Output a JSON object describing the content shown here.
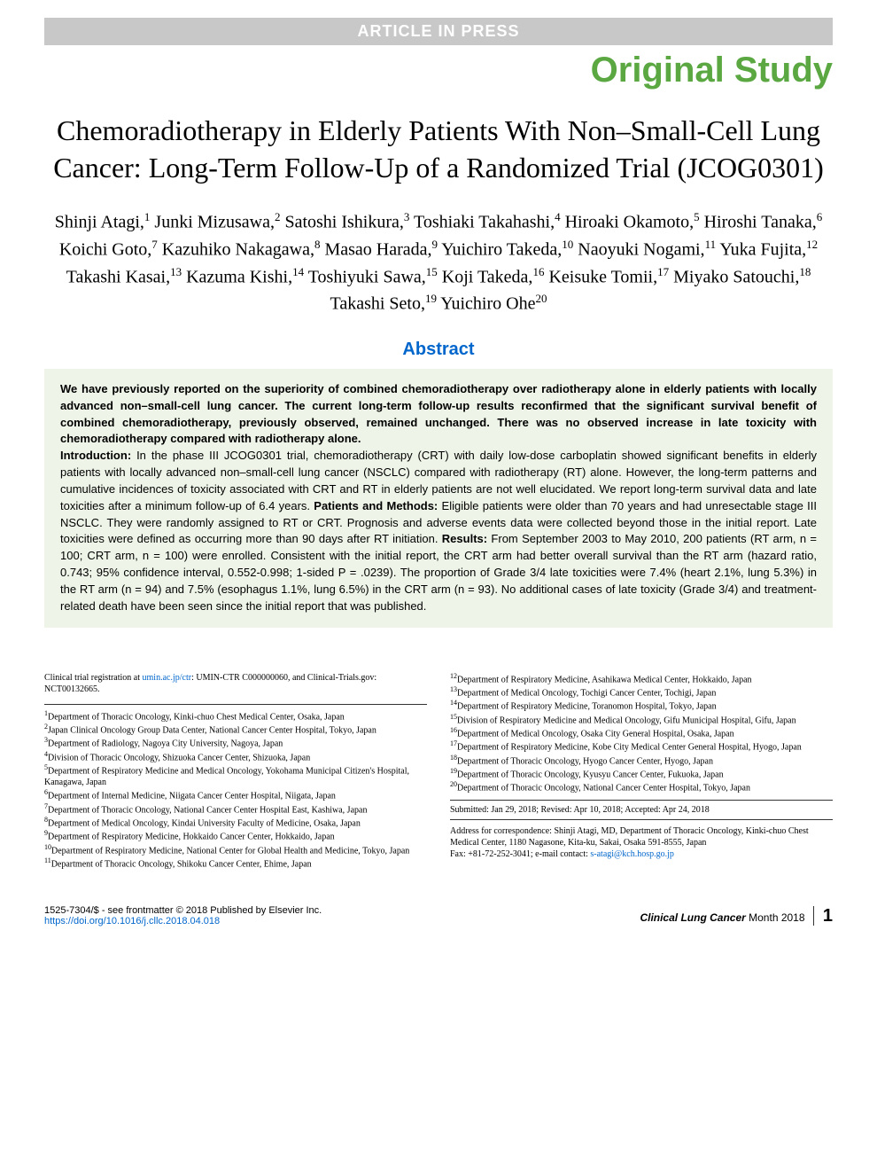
{
  "banner": {
    "in_press": "ARTICLE IN PRESS",
    "study_type": "Original Study"
  },
  "title": "Chemoradiotherapy in Elderly Patients With Non–Small-Cell Lung Cancer: Long-Term Follow-Up of a Randomized Trial (JCOG0301)",
  "authors_html": "Shinji Atagi,<sup>1</sup> Junki Mizusawa,<sup>2</sup> Satoshi Ishikura,<sup>3</sup> Toshiaki Takahashi,<sup>4</sup> Hiroaki Okamoto,<sup>5</sup> Hiroshi Tanaka,<sup>6</sup> Koichi Goto,<sup>7</sup> Kazuhiko Nakagawa,<sup>8</sup> Masao Harada,<sup>9</sup> Yuichiro Takeda,<sup>10</sup> Naoyuki Nogami,<sup>11</sup> Yuka Fujita,<sup>12</sup> Takashi Kasai,<sup>13</sup> Kazuma Kishi,<sup>14</sup> Toshiyuki Sawa,<sup>15</sup> Koji Takeda,<sup>16</sup> Keisuke Tomii,<sup>17</sup> Miyako Satouchi,<sup>18</sup> Takashi Seto,<sup>19</sup> Yuichiro Ohe<sup>20</sup>",
  "abstract": {
    "heading": "Abstract",
    "lead": "We have previously reported on the superiority of combined chemoradiotherapy over radiotherapy alone in elderly patients with locally advanced non–small-cell lung cancer. The current long-term follow-up results reconfirmed that the significant survival benefit of combined chemoradiotherapy, previously observed, remained unchanged. There was no observed increase in late toxicity with chemoradiotherapy compared with radiotherapy alone.",
    "intro_label": "Introduction:",
    "intro": " In the phase III JCOG0301 trial, chemoradiotherapy (CRT) with daily low-dose carboplatin showed significant benefits in elderly patients with locally advanced non–small-cell lung cancer (NSCLC) compared with radiotherapy (RT) alone. However, the long-term patterns and cumulative incidences of toxicity associated with CRT and RT in elderly patients are not well elucidated. We report long-term survival data and late toxicities after a minimum follow-up of 6.4 years. ",
    "patients_label": "Patients and Methods:",
    "patients": " Eligible patients were older than 70 years and had unresectable stage III NSCLC. They were randomly assigned to RT or CRT. Prognosis and adverse events data were collected beyond those in the initial report. Late toxicities were defined as occurring more than 90 days after RT initiation. ",
    "results_label": "Results:",
    "results": " From September 2003 to May 2010, 200 patients (RT arm, n = 100; CRT arm, n = 100) were enrolled. Consistent with the initial report, the CRT arm had better overall survival than the RT arm (hazard ratio, 0.743; 95% confidence interval, 0.552-0.998; 1-sided P = .0239). The proportion of Grade 3/4 late toxicities were 7.4% (heart 2.1%, lung 5.3%) in the RT arm (n = 94) and 7.5% (esophagus 1.1%, lung 6.5%) in the CRT arm (n = 93). No additional cases of late toxicity (Grade 3/4) and treatment-related death have been seen since the initial report that was published."
  },
  "clinical_trials": {
    "text_before": "Clinical trial registration at ",
    "link1_text": "umin.ac.jp/ctr",
    "text_mid": ": UMIN-CTR C000000060, and Clinical-Trials.gov: NCT00132665."
  },
  "affiliations_left": [
    "1Department of Thoracic Oncology, Kinki-chuo Chest Medical Center, Osaka, Japan",
    "2Japan Clinical Oncology Group Data Center, National Cancer Center Hospital, Tokyo, Japan",
    "3Department of Radiology, Nagoya City University, Nagoya, Japan",
    "4Division of Thoracic Oncology, Shizuoka Cancer Center, Shizuoka, Japan",
    "5Department of Respiratory Medicine and Medical Oncology, Yokohama Municipal Citizen's Hospital, Kanagawa, Japan",
    "6Department of Internal Medicine, Niigata Cancer Center Hospital, Niigata, Japan",
    "7Department of Thoracic Oncology, National Cancer Center Hospital East, Kashiwa, Japan",
    "8Department of Medical Oncology, Kindai University Faculty of Medicine, Osaka, Japan",
    "9Department of Respiratory Medicine, Hokkaido Cancer Center, Hokkaido, Japan",
    "10Department of Respiratory Medicine, National Center for Global Health and Medicine, Tokyo, Japan",
    "11Department of Thoracic Oncology, Shikoku Cancer Center, Ehime, Japan"
  ],
  "affiliations_right": [
    "12Department of Respiratory Medicine, Asahikawa Medical Center, Hokkaido, Japan",
    "13Department of Medical Oncology, Tochigi Cancer Center, Tochigi, Japan",
    "14Department of Respiratory Medicine, Toranomon Hospital, Tokyo, Japan",
    "15Division of Respiratory Medicine and Medical Oncology, Gifu Municipal Hospital, Gifu, Japan",
    "16Department of Medical Oncology, Osaka City General Hospital, Osaka, Japan",
    "17Department of Respiratory Medicine, Kobe City Medical Center General Hospital, Hyogo, Japan",
    "18Department of Thoracic Oncology, Hyogo Cancer Center, Hyogo, Japan",
    "19Department of Thoracic Oncology, Kyusyu Cancer Center, Fukuoka, Japan",
    "20Department of Thoracic Oncology, National Cancer Center Hospital, Tokyo, Japan"
  ],
  "submitted": "Submitted: Jan 29, 2018; Revised: Apr 10, 2018; Accepted: Apr 24, 2018",
  "correspondence": {
    "line1": "Address for correspondence: Shinji Atagi, MD, Department of Thoracic Oncology, Kinki-chuo Chest Medical Center, 1180 Nagasone, Kita-ku, Sakai, Osaka 591-8555, Japan",
    "line2_before": "Fax: +81-72-252-3041; e-mail contact: ",
    "email": "s-atagi@kch.hosp.go.jp"
  },
  "footer": {
    "frontmatter": "1525-7304/$ - see frontmatter © 2018 Published by Elsevier Inc.",
    "doi": "https://doi.org/10.1016/j.cllc.2018.04.018",
    "journal": "Clinical Lung Cancer",
    "issue": "Month 2018",
    "page": "1"
  },
  "colors": {
    "green": "#5ba843",
    "blue": "#0066cc",
    "abstract_bg": "#eef5e8",
    "banner_gray": "#c8c8c8"
  }
}
